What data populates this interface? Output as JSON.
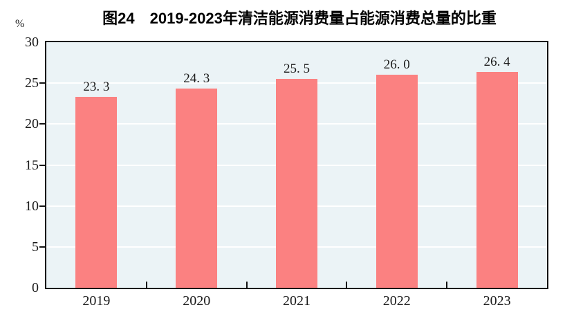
{
  "header": {
    "title": "图24　2019-2023年清洁能源消费量占能源消费总量的比重"
  },
  "chart_data": {
    "type": "bar",
    "title": "图24　2019-2023年清洁能源消费量占能源消费总量的比重",
    "unit_label": "%",
    "categories": [
      "2019",
      "2020",
      "2021",
      "2022",
      "2023"
    ],
    "values": [
      23.3,
      24.3,
      25.5,
      26.0,
      26.4
    ],
    "value_labels": [
      "23. 3",
      "24. 3",
      "25. 5",
      "26. 0",
      "26. 4"
    ],
    "xlabel": "",
    "ylabel": "%",
    "ylim": [
      0,
      30
    ],
    "yticks": [
      0,
      5,
      10,
      15,
      20,
      25,
      30
    ],
    "grid": true,
    "legend_position": "none",
    "colors": {
      "bar": "#FB8181",
      "plot_background": "#EBF3F6",
      "gridline": "#FFFFFF",
      "axis": "#111111",
      "text": "#1A1A1A"
    }
  }
}
